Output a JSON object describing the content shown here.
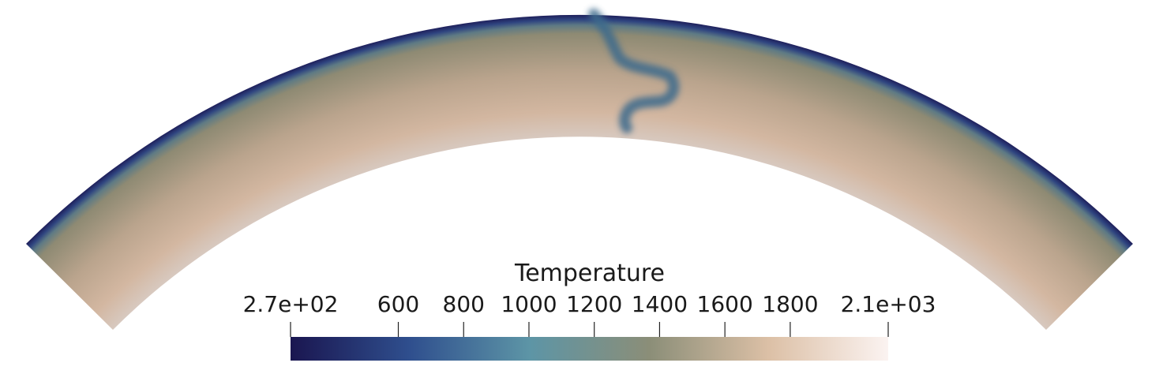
{
  "chart_data": {
    "type": "heatmap",
    "title": "",
    "field": "Temperature",
    "colorbar": {
      "title": "Temperature",
      "range": [
        270,
        2100
      ],
      "ticks": [
        {
          "value": 270,
          "label": "2.7e+02"
        },
        {
          "value": 600,
          "label": "600"
        },
        {
          "value": 800,
          "label": "800"
        },
        {
          "value": 1000,
          "label": "1000"
        },
        {
          "value": 1200,
          "label": "1200"
        },
        {
          "value": 1400,
          "label": "1400"
        },
        {
          "value": 1600,
          "label": "1600"
        },
        {
          "value": 1800,
          "label": "1800"
        },
        {
          "value": 2100,
          "label": "2.1e+03"
        }
      ],
      "placement": "bottom-center"
    },
    "colormap": [
      "#1a1650",
      "#2f4f8e",
      "#5d95a6",
      "#8b8e78",
      "#dcc0a6",
      "#fbf3f1"
    ],
    "domain": "annular section (spherical shell slice)",
    "features": {
      "cold_surface_boundary_layer": true,
      "subducting_cold_slab": "near top center, bending toward the right"
    }
  }
}
